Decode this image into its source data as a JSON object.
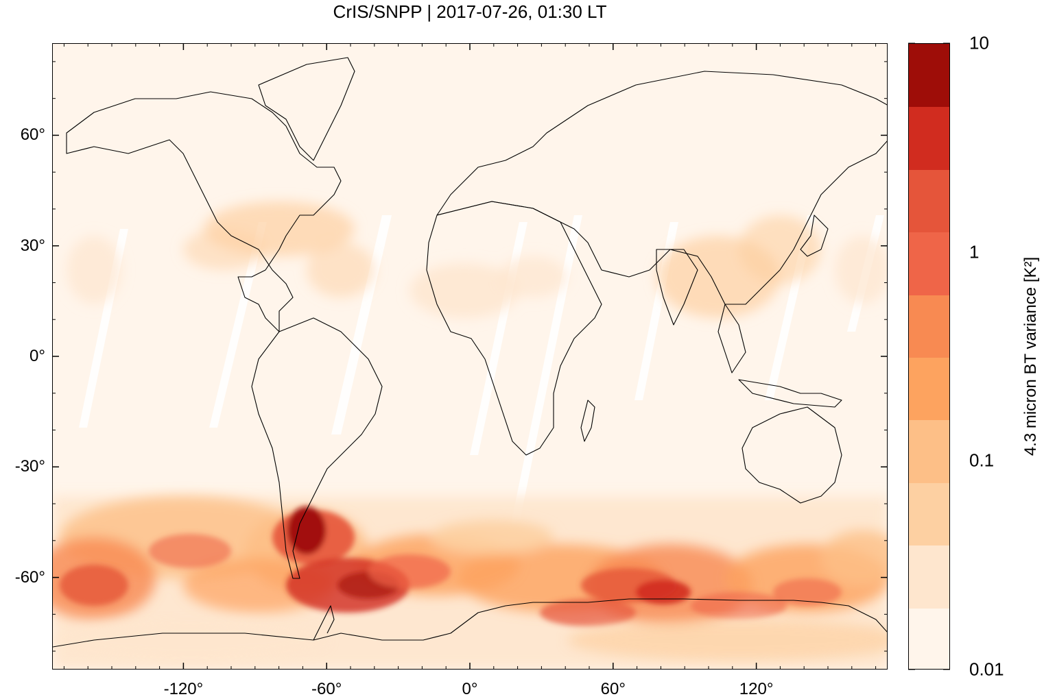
{
  "title": "CrIS/SNPP | 2017-07-26, 01:30 LT",
  "map": {
    "x_ticks": [
      {
        "lon": -120,
        "label": "-120°"
      },
      {
        "lon": -60,
        "label": "-60°"
      },
      {
        "lon": 0,
        "label": "0°"
      },
      {
        "lon": 60,
        "label": "60°"
      },
      {
        "lon": 120,
        "label": "120°"
      }
    ],
    "y_ticks": [
      {
        "lat": 60,
        "label": "60°"
      },
      {
        "lat": 30,
        "label": "30°"
      },
      {
        "lat": 0,
        "label": "0°"
      },
      {
        "lat": -30,
        "label": "-30°"
      },
      {
        "lat": -60,
        "label": "-60°"
      }
    ],
    "lon_range": [
      -175,
      175
    ],
    "lat_range": [
      -85,
      85
    ]
  },
  "colorbar": {
    "title": "4.3 micron BT variance [K²]",
    "scale": "log",
    "range": [
      0.01,
      10
    ],
    "tick_labels": [
      {
        "value": 10,
        "label": "10"
      },
      {
        "value": 1,
        "label": "1"
      },
      {
        "value": 0.1,
        "label": "0.1"
      },
      {
        "value": 0.01,
        "label": "0.01"
      }
    ],
    "colors": [
      "#fff5eb",
      "#fee6ce",
      "#fdd0a2",
      "#fdbf87",
      "#fda35f",
      "#f88a52",
      "#ef6548",
      "#e5553a",
      "#d12c1f",
      "#9e0d08"
    ]
  }
}
